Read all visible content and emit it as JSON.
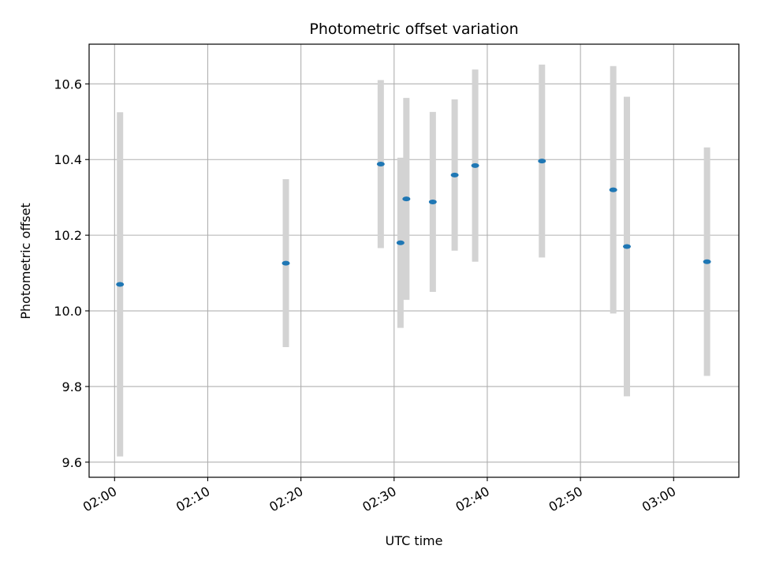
{
  "chart_data": {
    "type": "scatter",
    "title": "Photometric offset variation",
    "xlabel": "UTC time",
    "ylabel": "Photometric offset",
    "x_unit": "minutes",
    "xlim": [
      "01:57:16",
      "03:07:00"
    ],
    "ylim": [
      9.56,
      10.705
    ],
    "x_ticks": [
      "02:00",
      "02:10",
      "02:20",
      "02:30",
      "02:40",
      "02:50",
      "03:00"
    ],
    "y_ticks": [
      9.6,
      9.8,
      10.0,
      10.2,
      10.4,
      10.6
    ],
    "y_tick_labels": [
      "9.6",
      "9.8",
      "10.0",
      "10.2",
      "10.4",
      "10.6"
    ],
    "grid": true,
    "marker_color": "#1f77b4",
    "errorbar_color": "#d3d3d3",
    "points": [
      {
        "t": "02:00:35",
        "y": 10.07,
        "err": 0.455
      },
      {
        "t": "02:18:23",
        "y": 10.126,
        "err": 0.222
      },
      {
        "t": "02:28:34",
        "y": 10.388,
        "err": 0.222
      },
      {
        "t": "02:30:41",
        "y": 10.18,
        "err": 0.225
      },
      {
        "t": "02:31:19",
        "y": 10.296,
        "err": 0.267
      },
      {
        "t": "02:34:09",
        "y": 10.288,
        "err": 0.238
      },
      {
        "t": "02:36:30",
        "y": 10.359,
        "err": 0.2
      },
      {
        "t": "02:38:42",
        "y": 10.384,
        "err": 0.254
      },
      {
        "t": "02:45:52",
        "y": 10.396,
        "err": 0.255
      },
      {
        "t": "02:53:31",
        "y": 10.32,
        "err": 0.327
      },
      {
        "t": "02:54:59",
        "y": 10.17,
        "err": 0.396
      },
      {
        "t": "03:03:35",
        "y": 10.13,
        "err": 0.302
      }
    ]
  }
}
